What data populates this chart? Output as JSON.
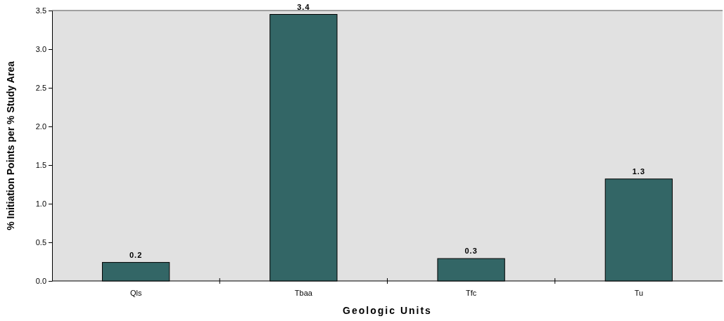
{
  "chart_data": {
    "type": "bar",
    "xlabel": "Geologic Units",
    "ylabel": "% Initiation Points per % Study Area",
    "categories": [
      "Qls",
      "Tbaa",
      "Tfc",
      "Tu"
    ],
    "series": [
      {
        "color": "#336666",
        "values": [
          0.24,
          3.45,
          0.29,
          1.32
        ],
        "value_labels": [
          "0.2",
          "3.4",
          "0.3",
          "1.3"
        ]
      }
    ],
    "ylim": [
      0,
      3.5
    ],
    "yticks": [
      {
        "value": 0,
        "label": "0.0"
      },
      {
        "value": 0.5,
        "label": "0.5"
      },
      {
        "value": 1,
        "label": "1.0"
      },
      {
        "value": 1.5,
        "label": "1.5"
      },
      {
        "value": 2,
        "label": "2.0"
      },
      {
        "value": 2.5,
        "label": "2.5"
      },
      {
        "value": 3,
        "label": "3.0"
      },
      {
        "value": 3.5,
        "label": "3.5"
      }
    ],
    "grid": false
  }
}
